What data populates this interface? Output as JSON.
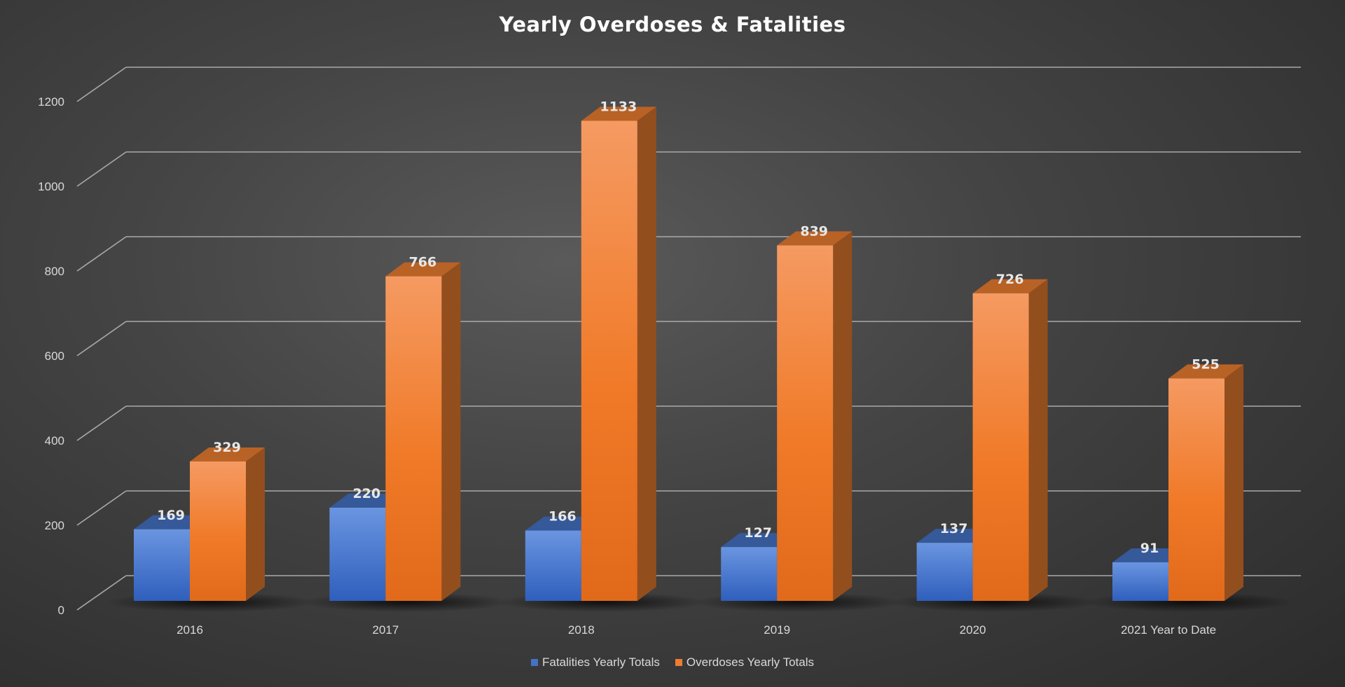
{
  "chart_data": {
    "type": "bar",
    "title": "Yearly Overdoses & Fatalities",
    "xlabel": "",
    "ylabel": "",
    "categories": [
      "2016",
      "2017",
      "2018",
      "2019",
      "2020",
      "2021 Year to Date"
    ],
    "series": [
      {
        "name": "Fatalities Yearly Totals",
        "values": [
          169,
          220,
          166,
          127,
          137,
          91
        ],
        "color": "#4472c4"
      },
      {
        "name": "Overdoses Yearly Totals",
        "values": [
          329,
          766,
          1133,
          839,
          726,
          525
        ],
        "color": "#ed7d31"
      }
    ],
    "ylim": [
      0,
      1200
    ],
    "yticks": [
      "0",
      "200",
      "400",
      "600",
      "800",
      "1000",
      "1200"
    ],
    "grid": true,
    "legend_position": "bottom",
    "style": "3d-column"
  }
}
